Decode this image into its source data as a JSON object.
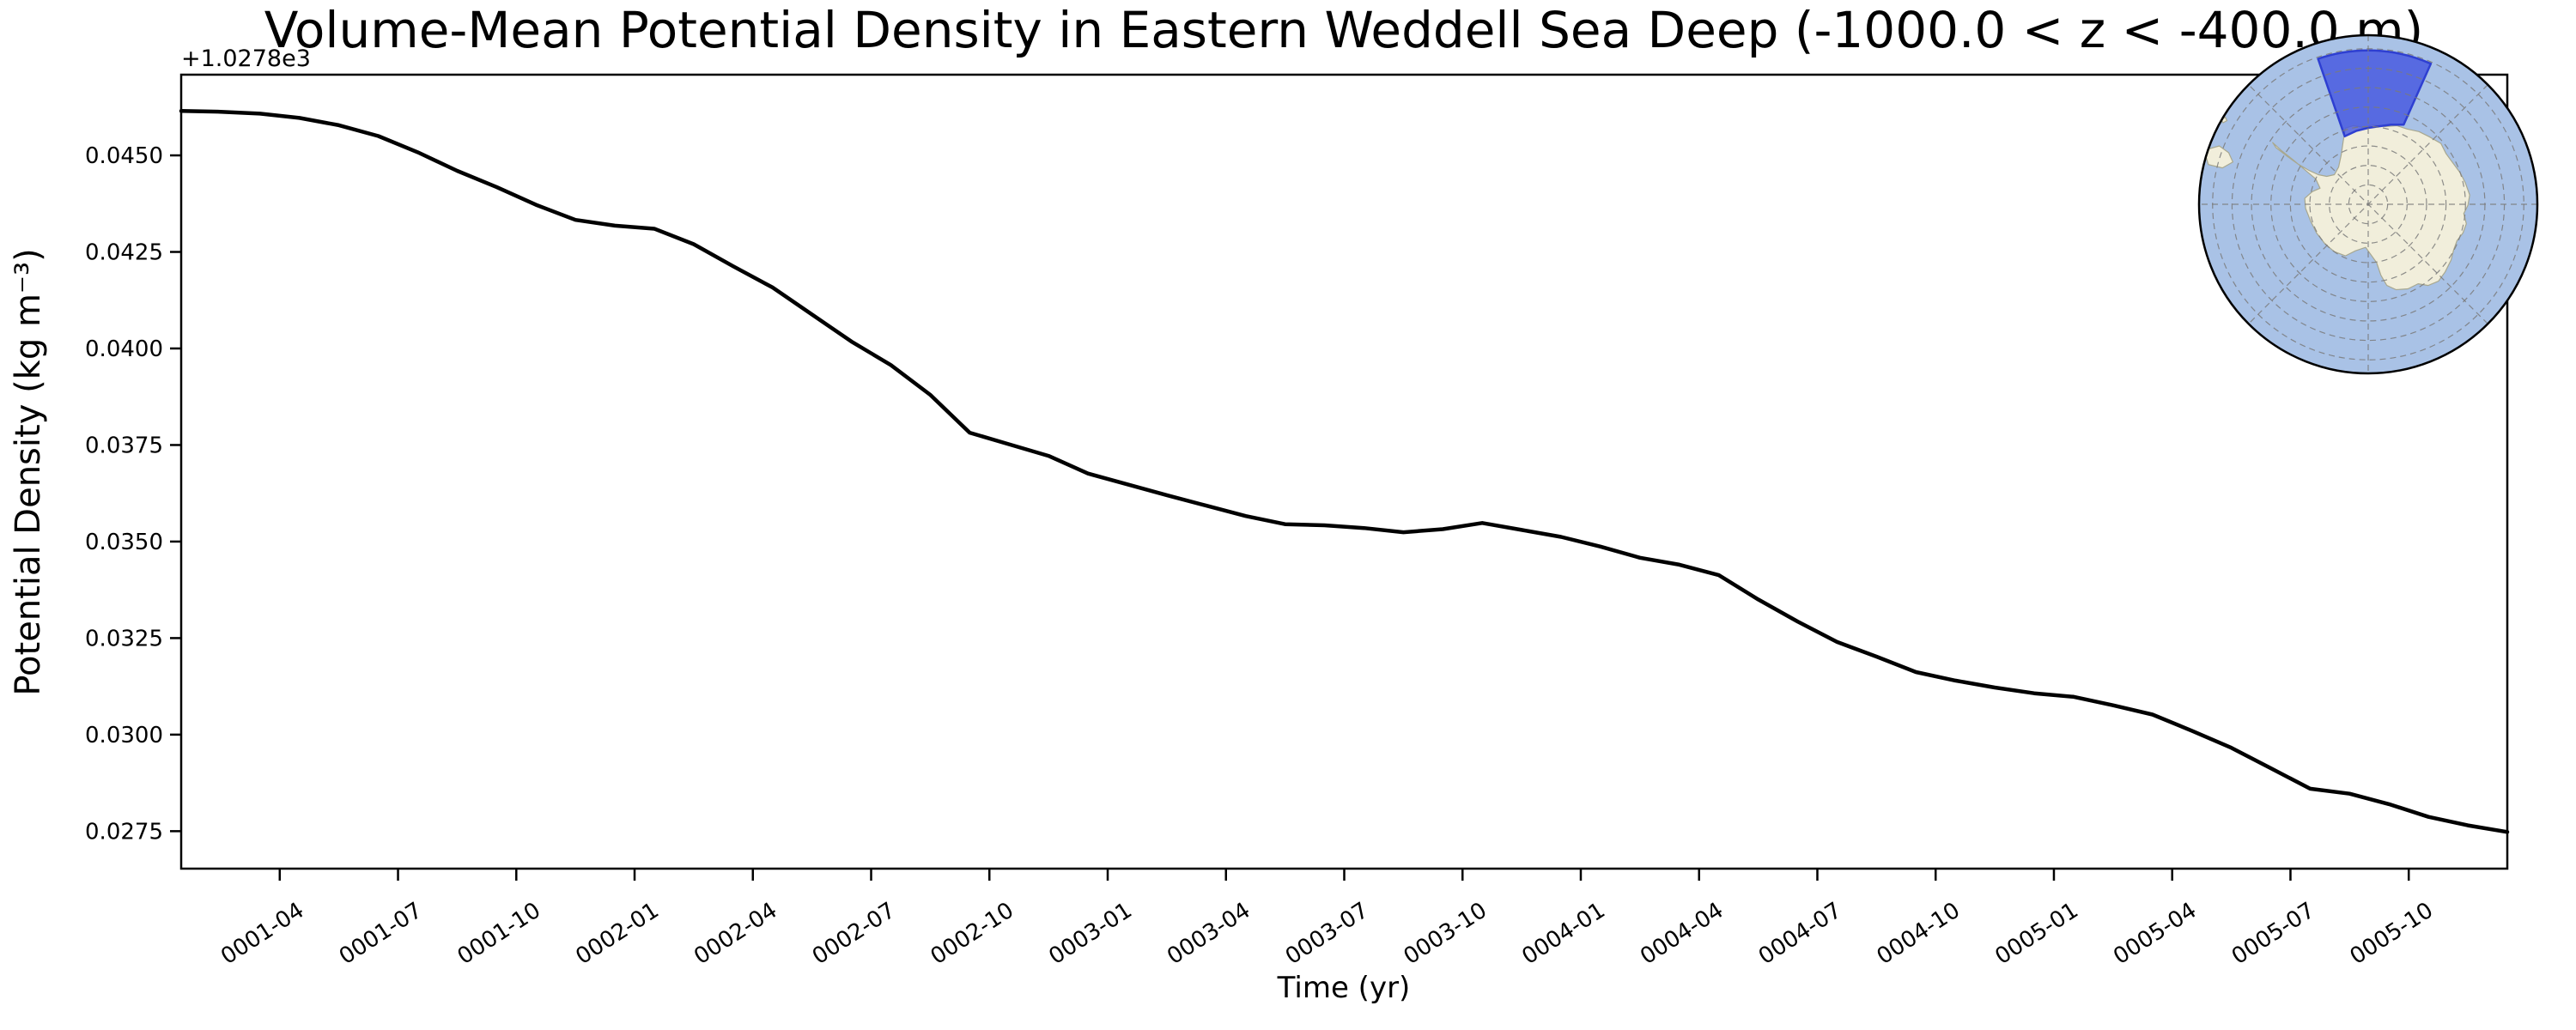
{
  "title": "Volume-Mean Potential Density in Eastern Weddell Sea Deep (-1000.0 < z < -400.0 m)",
  "axes": {
    "xlabel": "Time (yr)",
    "ylabel": "Potential Density (kg m⁻³)",
    "offset_label": "+1.0278e3",
    "x_tick_labels": [
      "0001-04",
      "0001-07",
      "0001-10",
      "0002-01",
      "0002-04",
      "0002-07",
      "0002-10",
      "0003-01",
      "0003-04",
      "0003-07",
      "0003-10",
      "0004-01",
      "0004-04",
      "0004-07",
      "0004-10",
      "0005-01",
      "0005-04",
      "0005-07",
      "0005-10"
    ],
    "y_tick_labels": [
      "0.0450",
      "0.0425",
      "0.0400",
      "0.0375",
      "0.0350",
      "0.0325",
      "0.0300",
      "0.0275"
    ],
    "y_tick_values": [
      0.045,
      0.0425,
      0.04,
      0.0375,
      0.035,
      0.0325,
      0.03,
      0.0275
    ]
  },
  "chart_data": {
    "type": "line",
    "title": "Volume-Mean Potential Density in Eastern Weddell Sea Deep (-1000.0 < z < -400.0 m)",
    "xlabel": "Time (yr)",
    "ylabel": "Potential Density (kg m⁻³)",
    "y_offset_note": "values are relative to +1.0278e3 (i.e. absolute = 1027.8 + value)",
    "ylim": [
      0.02653,
      0.04709
    ],
    "grid": false,
    "legend": "none",
    "x": [
      "0001-01",
      "0001-02",
      "0001-03",
      "0001-04",
      "0001-05",
      "0001-06",
      "0001-07",
      "0001-08",
      "0001-09",
      "0001-10",
      "0001-11",
      "0001-12",
      "0002-01",
      "0002-02",
      "0002-03",
      "0002-04",
      "0002-05",
      "0002-06",
      "0002-07",
      "0002-08",
      "0002-09",
      "0002-10",
      "0002-11",
      "0002-12",
      "0003-01",
      "0003-02",
      "0003-03",
      "0003-04",
      "0003-05",
      "0003-06",
      "0003-07",
      "0003-08",
      "0003-09",
      "0003-10",
      "0003-11",
      "0003-12",
      "0004-01",
      "0004-02",
      "0004-03",
      "0004-04",
      "0004-05",
      "0004-06",
      "0004-07",
      "0004-08",
      "0004-09",
      "0004-10",
      "0004-11",
      "0004-12",
      "0005-01",
      "0005-02",
      "0005-03",
      "0005-04",
      "0005-05",
      "0005-06",
      "0005-07",
      "0005-08",
      "0005-09",
      "0005-10",
      "0005-11",
      "0005-12"
    ],
    "series": [
      {
        "name": "volume-mean potential density",
        "color": "#000000",
        "values": [
          0.04615,
          0.04613,
          0.04608,
          0.04597,
          0.04578,
          0.0455,
          0.04508,
          0.0446,
          0.04418,
          0.04372,
          0.04333,
          0.04318,
          0.0431,
          0.0427,
          0.04213,
          0.04158,
          0.04088,
          0.04018,
          0.03957,
          0.0388,
          0.03782,
          0.03752,
          0.03722,
          0.03676,
          0.03648,
          0.0362,
          0.03593,
          0.03566,
          0.03545,
          0.03542,
          0.03535,
          0.03524,
          0.03532,
          0.03548,
          0.0353,
          0.03512,
          0.03487,
          0.03458,
          0.0344,
          0.03413,
          0.0335,
          0.03293,
          0.0324,
          0.03202,
          0.03162,
          0.0314,
          0.03122,
          0.03107,
          0.03098,
          0.03076,
          0.03052,
          0.0301,
          0.02966,
          0.02913,
          0.0286,
          0.02847,
          0.0282,
          0.02787,
          0.02765,
          0.02748
        ]
      }
    ]
  },
  "inset_map": {
    "description": "South polar stereographic locator map with Eastern Weddell Sea sector highlighted",
    "ocean_color": "#a9c2e6",
    "land_color": "#f1eedb",
    "coast_color": "#a8a890",
    "grid_color": "#7a7a7a",
    "region_fill": "#4254e0",
    "region_edge": "#2e3fd1",
    "outline_color": "#000000",
    "region": {
      "az_start_deg": -19,
      "az_end_deg": 24,
      "r_outer": 0.91,
      "inner_edge": [
        [
          -19,
          0.425
        ],
        [
          -9,
          0.44
        ],
        [
          0,
          0.452
        ],
        [
          8,
          0.466
        ],
        [
          16,
          0.49
        ],
        [
          24,
          0.515
        ]
      ]
    },
    "parallels_r": [
      0.115,
      0.23,
      0.345,
      0.46,
      0.575,
      0.69,
      0.805,
      0.92
    ],
    "meridian_step_deg": 45,
    "land_outline": [
      [
        -0.135,
        -0.45
      ],
      [
        -0.09,
        -0.465
      ],
      [
        -0.03,
        -0.455
      ],
      [
        0.03,
        -0.47
      ],
      [
        0.1,
        -0.46
      ],
      [
        0.17,
        -0.465
      ],
      [
        0.23,
        -0.445
      ],
      [
        0.3,
        -0.43
      ],
      [
        0.36,
        -0.4
      ],
      [
        0.43,
        -0.36
      ],
      [
        0.46,
        -0.3
      ],
      [
        0.5,
        -0.245
      ],
      [
        0.545,
        -0.185
      ],
      [
        0.575,
        -0.125
      ],
      [
        0.6,
        -0.055
      ],
      [
        0.59,
        0.005
      ],
      [
        0.565,
        0.055
      ],
      [
        0.58,
        0.115
      ],
      [
        0.56,
        0.17
      ],
      [
        0.525,
        0.215
      ],
      [
        0.505,
        0.27
      ],
      [
        0.49,
        0.33
      ],
      [
        0.455,
        0.4
      ],
      [
        0.415,
        0.455
      ],
      [
        0.355,
        0.48
      ],
      [
        0.295,
        0.47
      ],
      [
        0.235,
        0.5
      ],
      [
        0.165,
        0.505
      ],
      [
        0.11,
        0.48
      ],
      [
        0.075,
        0.42
      ],
      [
        0.05,
        0.345
      ],
      [
        -0.015,
        0.255
      ],
      [
        -0.075,
        0.275
      ],
      [
        -0.135,
        0.305
      ],
      [
        -0.2,
        0.28
      ],
      [
        -0.255,
        0.235
      ],
      [
        -0.305,
        0.17
      ],
      [
        -0.34,
        0.1
      ],
      [
        -0.37,
        0.025
      ],
      [
        -0.375,
        -0.035
      ],
      [
        -0.33,
        -0.075
      ],
      [
        -0.285,
        -0.095
      ],
      [
        -0.31,
        -0.15
      ],
      [
        -0.37,
        -0.2
      ],
      [
        -0.44,
        -0.26
      ],
      [
        -0.51,
        -0.315
      ],
      [
        -0.565,
        -0.365
      ],
      [
        -0.545,
        -0.335
      ],
      [
        -0.48,
        -0.285
      ],
      [
        -0.41,
        -0.235
      ],
      [
        -0.35,
        -0.2
      ],
      [
        -0.295,
        -0.175
      ],
      [
        -0.245,
        -0.165
      ],
      [
        -0.2,
        -0.175
      ],
      [
        -0.175,
        -0.22
      ],
      [
        -0.16,
        -0.29
      ],
      [
        -0.148,
        -0.37
      ]
    ],
    "islands": [
      [
        [
          -0.97,
          -0.32
        ],
        [
          -0.88,
          -0.345
        ],
        [
          -0.825,
          -0.305
        ],
        [
          -0.8,
          -0.25
        ],
        [
          -0.862,
          -0.215
        ],
        [
          -0.945,
          -0.235
        ]
      ],
      [
        [
          -0.87,
          -0.5
        ],
        [
          -0.845,
          -0.515
        ],
        [
          -0.835,
          -0.495
        ],
        [
          -0.858,
          -0.482
        ]
      ]
    ]
  },
  "colors": {
    "line": "#000000",
    "spine": "#000000",
    "background": "#ffffff"
  }
}
